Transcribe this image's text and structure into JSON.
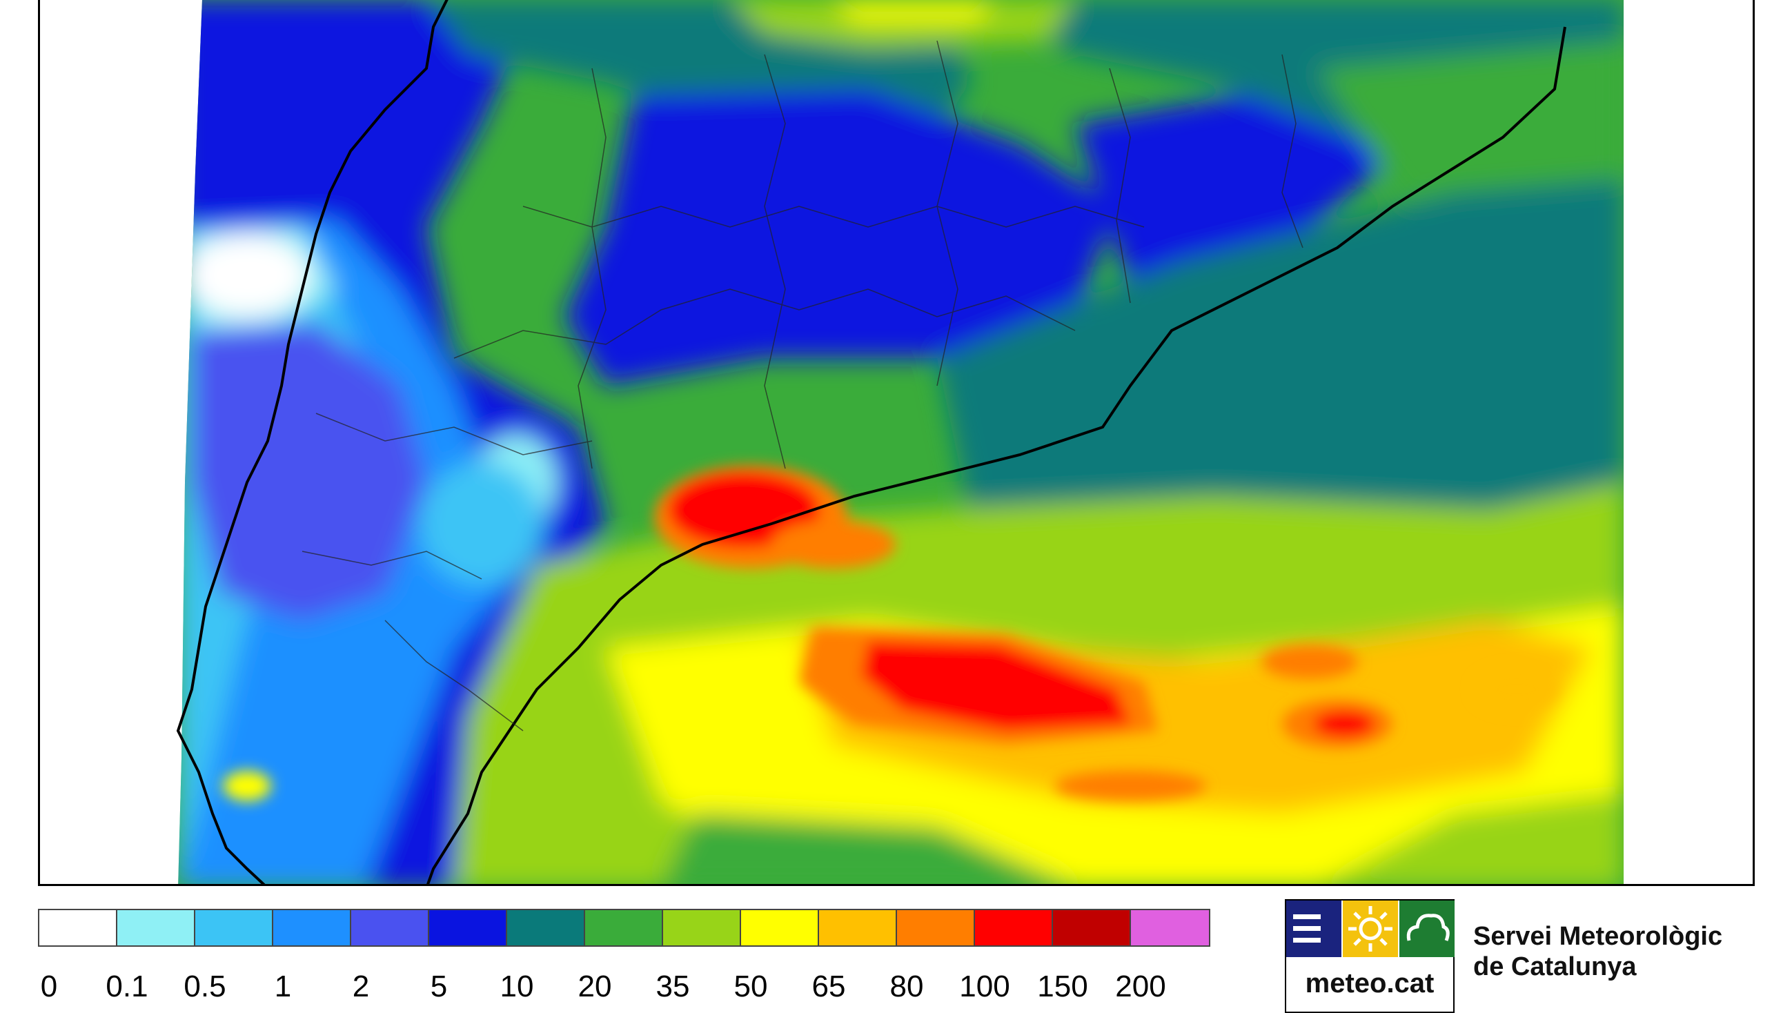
{
  "legend": {
    "colors": [
      "#ffffff",
      "#8ff0f5",
      "#3cc4f5",
      "#1e90ff",
      "#4a52f0",
      "#0a14e0",
      "#0a7a7a",
      "#3aac3a",
      "#98d418",
      "#ffff00",
      "#ffc000",
      "#ff7e00",
      "#ff0000",
      "#c00000",
      "#e060e0"
    ],
    "ticks": [
      "0",
      "0.1",
      "0.5",
      "1",
      "2",
      "5",
      "10",
      "20",
      "35",
      "50",
      "65",
      "80",
      "100",
      "150",
      "200"
    ]
  },
  "logo": {
    "text": "meteo.cat",
    "icons": [
      "menu-bars-icon",
      "sun-icon",
      "cloud-icon"
    ],
    "icon_colors": [
      "#1a237e",
      "#f4c20d",
      "#1e7d32"
    ]
  },
  "organization": {
    "line1": "Servei Meteorològic",
    "line2": "de Catalunya"
  }
}
